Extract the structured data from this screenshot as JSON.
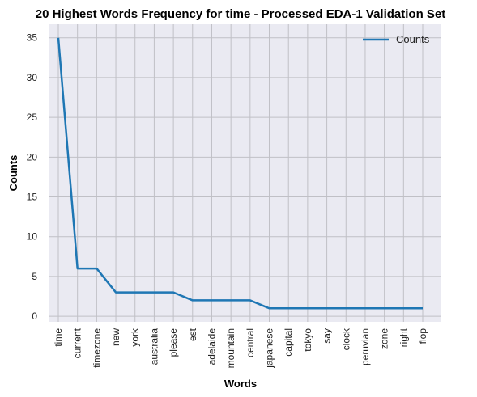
{
  "chart_data": {
    "type": "line",
    "title": "20 Highest Words Frequency for time - Processed EDA-1 Validation Set",
    "xlabel": "Words",
    "ylabel": "Counts",
    "categories": [
      "time",
      "current",
      "timezone",
      "new",
      "york",
      "australia",
      "please",
      "est",
      "adelaide",
      "mountain",
      "central",
      "japanese",
      "capital",
      "tokyo",
      "say",
      "clock",
      "peruvian",
      "zone",
      "right",
      "flop"
    ],
    "series": [
      {
        "name": "Counts",
        "values": [
          35,
          6,
          6,
          3,
          3,
          3,
          3,
          2,
          2,
          2,
          2,
          1,
          1,
          1,
          1,
          1,
          1,
          1,
          1,
          1
        ],
        "color": "#1f77b4"
      }
    ],
    "yticks": [
      0,
      5,
      10,
      15,
      20,
      25,
      30,
      35
    ],
    "ylim": [
      -0.7,
      36.7
    ],
    "grid": true,
    "legend": "top-right",
    "background": "#eaeaf2",
    "grid_color": "#c0c0c6"
  }
}
